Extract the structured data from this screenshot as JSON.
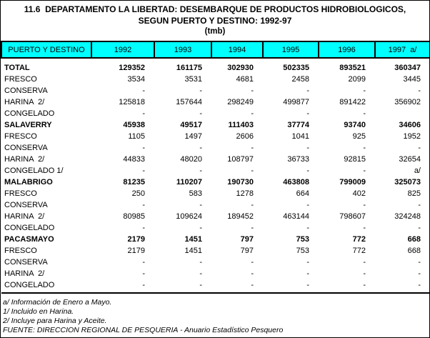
{
  "title": {
    "line1": "11.6  DEPARTAMENTO LA LIBERTAD: DESEMBARQUE DE PRODUCTOS HIDROBIOLOGICOS,",
    "line2": "SEGUN PUERTO Y DESTINO: 1992-97",
    "unit": "(tmb)"
  },
  "colors": {
    "header_bg": "#00ffff",
    "border": "#000000"
  },
  "table": {
    "columns": [
      "PUERTO Y DESTINO",
      "1992",
      "1993",
      "1994",
      "1995",
      "1996",
      "1997  a/"
    ],
    "rows": [
      {
        "label": "TOTAL",
        "bold": true,
        "values": [
          "129352",
          "161175",
          "302930",
          "502335",
          "893521",
          "360347"
        ]
      },
      {
        "label": "FRESCO",
        "bold": false,
        "values": [
          "3534",
          "3531",
          "4681",
          "2458",
          "2099",
          "3445"
        ]
      },
      {
        "label": "CONSERVA",
        "bold": false,
        "values": [
          "-",
          "-",
          "-",
          "-",
          "-",
          "-"
        ]
      },
      {
        "label": "HARINA  2/",
        "bold": false,
        "values": [
          "125818",
          "157644",
          "298249",
          "499877",
          "891422",
          "356902"
        ]
      },
      {
        "label": "CONGELADO",
        "bold": false,
        "values": [
          "-",
          "-",
          "-",
          "-",
          "-",
          ""
        ]
      },
      {
        "label": "SALAVERRY",
        "bold": true,
        "values": [
          "45938",
          "49517",
          "111403",
          "37774",
          "93740",
          "34606"
        ]
      },
      {
        "label": "FRESCO",
        "bold": false,
        "values": [
          "1105",
          "1497",
          "2606",
          "1041",
          "925",
          "1952"
        ]
      },
      {
        "label": "CONSERVA",
        "bold": false,
        "values": [
          "-",
          "-",
          "-",
          "-",
          "-",
          "-"
        ]
      },
      {
        "label": "HARINA  2/",
        "bold": false,
        "values": [
          "44833",
          "48020",
          "108797",
          "36733",
          "92815",
          "32654"
        ]
      },
      {
        "label": "CONGELADO 1/",
        "bold": false,
        "values": [
          "-",
          "-",
          "-",
          "-",
          "-",
          "a/"
        ]
      },
      {
        "label": "MALABRIGO",
        "bold": true,
        "values": [
          "81235",
          "110207",
          "190730",
          "463808",
          "799009",
          "325073"
        ]
      },
      {
        "label": "FRESCO",
        "bold": false,
        "values": [
          "250",
          "583",
          "1278",
          "664",
          "402",
          "825"
        ]
      },
      {
        "label": "CONSERVA",
        "bold": false,
        "values": [
          "-",
          "-",
          "-",
          "-",
          "-",
          "-"
        ]
      },
      {
        "label": "HARINA  2/",
        "bold": false,
        "values": [
          "80985",
          "109624",
          "189452",
          "463144",
          "798607",
          "324248"
        ]
      },
      {
        "label": "CONGELADO",
        "bold": false,
        "values": [
          "-",
          "-",
          "-",
          "-",
          "-",
          "-"
        ]
      },
      {
        "label": "PACASMAYO",
        "bold": true,
        "values": [
          "2179",
          "1451",
          "797",
          "753",
          "772",
          "668"
        ]
      },
      {
        "label": "FRESCO",
        "bold": false,
        "values": [
          "2179",
          "1451",
          "797",
          "753",
          "772",
          "668"
        ]
      },
      {
        "label": "CONSERVA",
        "bold": false,
        "values": [
          "-",
          "-",
          "-",
          "-",
          "-",
          "-"
        ]
      },
      {
        "label": "HARINA  2/",
        "bold": false,
        "values": [
          "-",
          "-",
          "-",
          "-",
          "-",
          "-"
        ]
      },
      {
        "label": "CONGELADO",
        "bold": false,
        "values": [
          "-",
          "-",
          "-",
          "-",
          "-",
          "-"
        ]
      }
    ]
  },
  "footnotes": [
    "a/ Información de Enero a Mayo.",
    "1/ Incluido en Harina.",
    "2/ Incluye para Harina y Aceite.",
    "FUENTE: DIRECCION REGIONAL DE PESQUERIA - Anuario Estadístico Pesquero"
  ]
}
